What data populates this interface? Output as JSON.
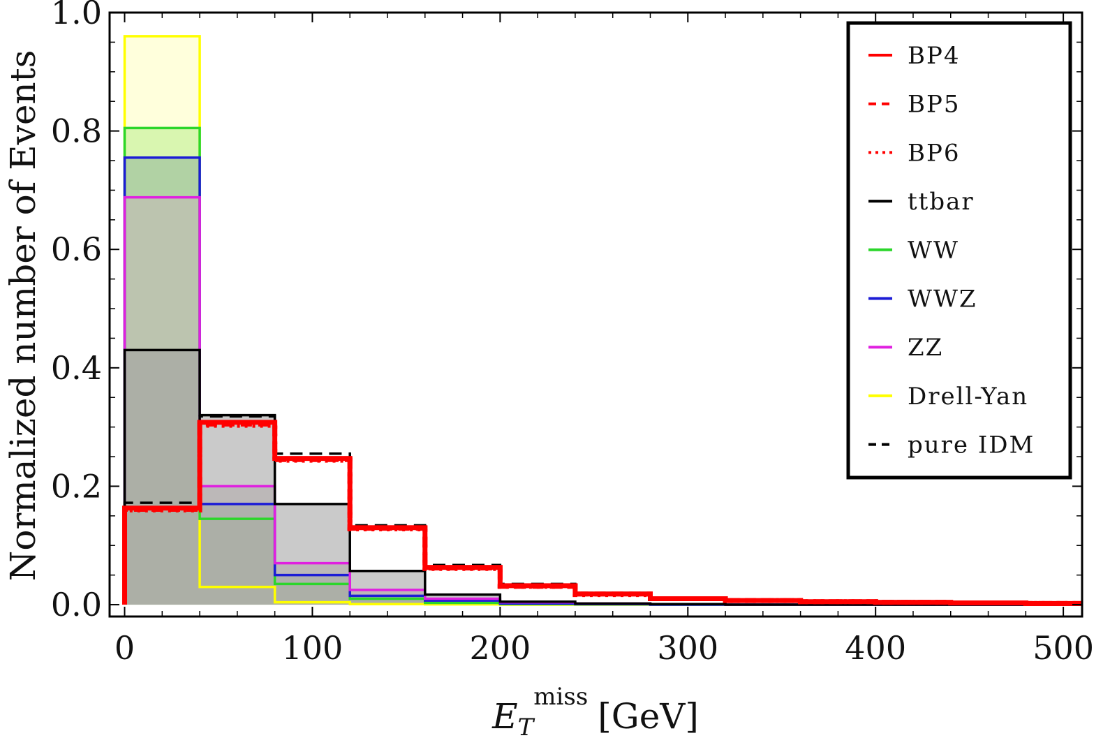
{
  "chart_data": {
    "type": "histogram",
    "title": "",
    "xlabel": {
      "symbol": "E",
      "subscript": "T",
      "superscript": "miss",
      "unit": "[GeV]"
    },
    "ylabel": "Normalized number of Events",
    "xlim": [
      -8,
      510
    ],
    "ylim": [
      -0.02,
      1.0
    ],
    "xticks": [
      "0",
      "100",
      "200",
      "300",
      "400",
      "500"
    ],
    "xtick_values": [
      0,
      100,
      200,
      300,
      400,
      500
    ],
    "yticks": [
      "0.0",
      "0.2",
      "0.4",
      "0.6",
      "0.8",
      "1.0"
    ],
    "ytick_values": [
      0.0,
      0.2,
      0.4,
      0.6,
      0.8,
      1.0
    ],
    "bin_edges": [
      0,
      40,
      80,
      120,
      160,
      200,
      240,
      280,
      320,
      360,
      400,
      440,
      480,
      520
    ],
    "legend_position": "top-right",
    "grid": false,
    "series": [
      {
        "name": "Drell-Yan",
        "color": "#ffff00",
        "dash": "solid",
        "fill": "#ffffc0",
        "values": [
          0.96,
          0.03,
          0.004,
          0.001,
          0.0005,
          0,
          0,
          0,
          0,
          0,
          0,
          0,
          0
        ]
      },
      {
        "name": "WW",
        "color": "#2bd62b",
        "dash": "solid",
        "fill": "#b9ef8c",
        "values": [
          0.805,
          0.145,
          0.035,
          0.01,
          0.003,
          0.001,
          0.0005,
          0,
          0,
          0,
          0,
          0,
          0
        ]
      },
      {
        "name": "WWZ",
        "color": "#1c1cd6",
        "dash": "solid",
        "fill": "#8fb59a",
        "values": [
          0.755,
          0.17,
          0.05,
          0.015,
          0.007,
          0.002,
          0.001,
          0,
          0,
          0,
          0,
          0,
          0
        ]
      },
      {
        "name": "ZZ",
        "color": "#e020e0",
        "dash": "solid",
        "fill": "#c4b8b8",
        "values": [
          0.688,
          0.2,
          0.07,
          0.025,
          0.01,
          0.004,
          0.002,
          0.001,
          0,
          0,
          0,
          0,
          0
        ]
      },
      {
        "name": "ttbar",
        "color": "#000000",
        "dash": "solid",
        "fill": "#9e9e9e",
        "values": [
          0.43,
          0.32,
          0.17,
          0.057,
          0.017,
          0.005,
          0.002,
          0.001,
          0,
          0,
          0,
          0,
          0
        ]
      },
      {
        "name": "pure IDM",
        "color": "#000000",
        "dash": "longdash",
        "fill": "none",
        "values": [
          0.172,
          0.318,
          0.255,
          0.134,
          0.067,
          0.035,
          0.02,
          0.011,
          0.007,
          0.005,
          0.004,
          0.003,
          0.002
        ]
      },
      {
        "name": "BP4",
        "color": "#ff0000",
        "dash": "solid",
        "fill": "none",
        "values": [
          0.163,
          0.308,
          0.247,
          0.13,
          0.063,
          0.032,
          0.018,
          0.01,
          0.007,
          0.005,
          0.004,
          0.003,
          0.002
        ]
      },
      {
        "name": "BP5",
        "color": "#ff0000",
        "dash": "dashed",
        "fill": "none",
        "values": [
          0.161,
          0.305,
          0.245,
          0.129,
          0.062,
          0.031,
          0.018,
          0.01,
          0.007,
          0.005,
          0.004,
          0.003,
          0.002
        ]
      },
      {
        "name": "BP6",
        "color": "#ff0000",
        "dash": "dotted",
        "fill": "none",
        "values": [
          0.16,
          0.303,
          0.244,
          0.128,
          0.061,
          0.031,
          0.017,
          0.01,
          0.007,
          0.005,
          0.004,
          0.003,
          0.002
        ]
      }
    ],
    "legend_order": [
      "BP4",
      "BP5",
      "BP6",
      "ttbar",
      "WW",
      "WWZ",
      "ZZ",
      "Drell-Yan",
      "pure IDM"
    ],
    "colors": {
      "frame": "#000000",
      "background": "#ffffff"
    }
  }
}
